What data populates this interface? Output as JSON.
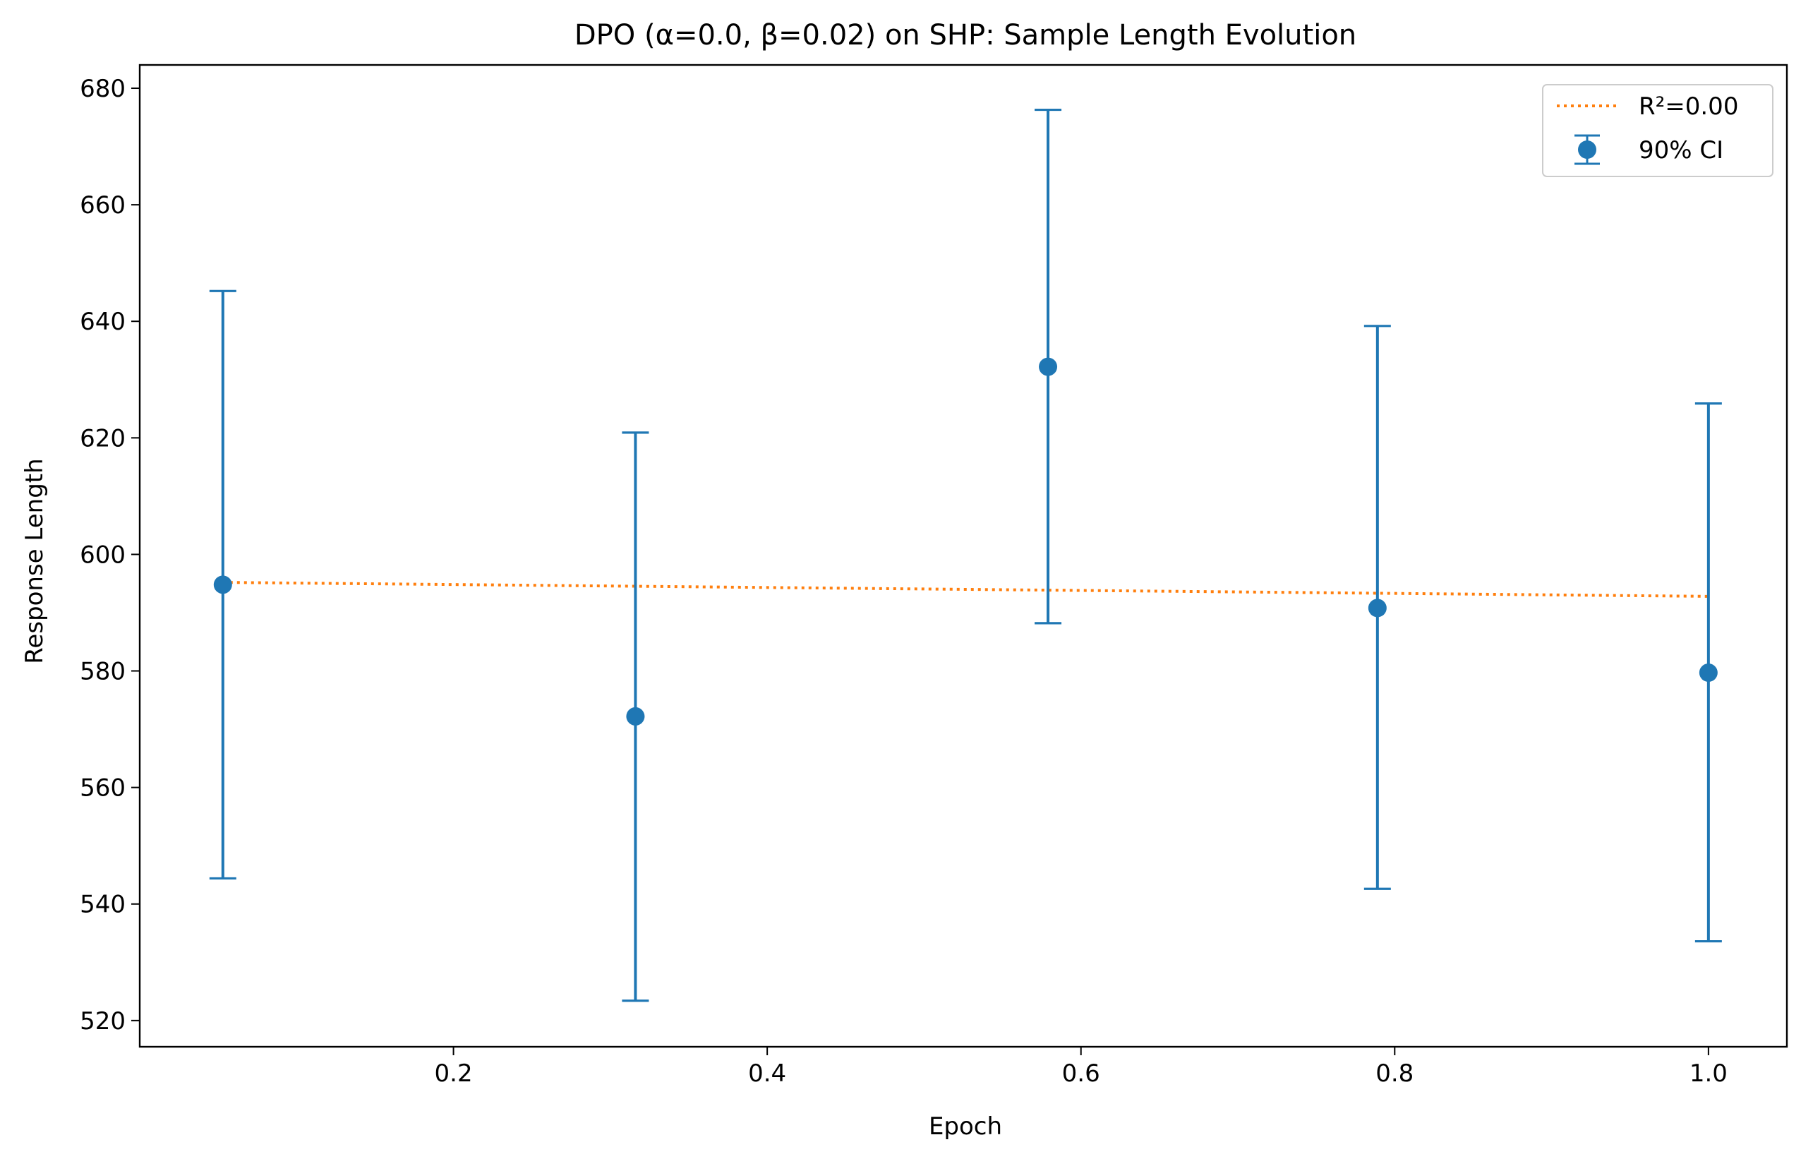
{
  "chart_data": {
    "type": "scatter",
    "title": "DPO (α=0.0, β=0.02) on SHP: Sample Length Evolution",
    "xlabel": "Epoch",
    "ylabel": "Response Length",
    "xlim": [
      0.0,
      1.05
    ],
    "ylim": [
      515.5,
      684
    ],
    "x_ticks": [
      0.2,
      0.4,
      0.6,
      0.8,
      1.0
    ],
    "x_tick_labels": [
      "0.2",
      "0.4",
      "0.6",
      "0.8",
      "1.0"
    ],
    "y_ticks": [
      520,
      540,
      560,
      580,
      600,
      620,
      640,
      660,
      680
    ],
    "y_tick_labels": [
      "520",
      "540",
      "560",
      "580",
      "600",
      "620",
      "640",
      "660",
      "680"
    ],
    "grid": false,
    "legend_position": "top-right",
    "series": [
      {
        "name": "90% CI",
        "kind": "errorbar",
        "color": "#1f77b4",
        "x": [
          0.053,
          0.316,
          0.579,
          0.789,
          1.0
        ],
        "y": [
          594.8,
          572.2,
          632.2,
          590.8,
          579.7
        ],
        "y_lower": [
          544.4,
          523.4,
          588.2,
          542.6,
          533.6
        ],
        "y_upper": [
          645.2,
          620.9,
          676.3,
          639.2,
          625.9
        ]
      },
      {
        "name": "R²=0.00",
        "kind": "trend",
        "style": "dotted",
        "color": "#ff7f0e",
        "x": [
          0.053,
          1.0
        ],
        "y": [
          595.2,
          592.8
        ]
      }
    ]
  }
}
